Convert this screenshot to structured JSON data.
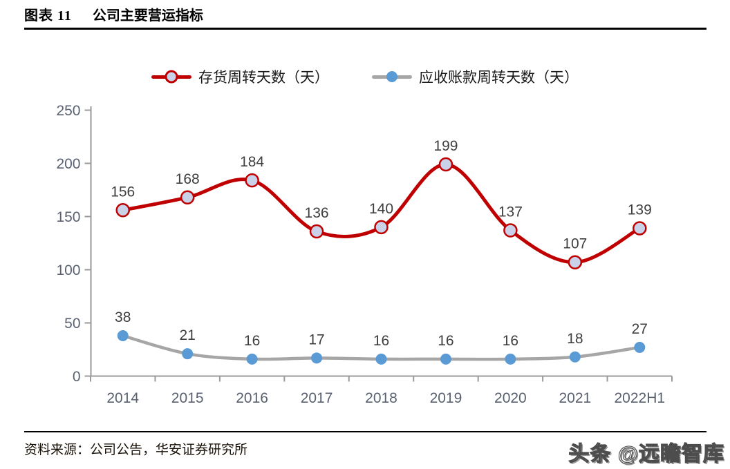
{
  "figure": {
    "label": "图表 11",
    "title": "公司主要营运指标"
  },
  "chart_data": {
    "type": "line",
    "categories": [
      "2014",
      "2015",
      "2016",
      "2017",
      "2018",
      "2019",
      "2020",
      "2021",
      "2022H1"
    ],
    "series": [
      {
        "name": "存货周转天数（天）",
        "values": [
          156,
          168,
          184,
          136,
          140,
          199,
          137,
          107,
          139
        ],
        "color": "#C00000",
        "marker_fill": "#C9D2E8",
        "marker_stroke": "#C00000",
        "smooth": true
      },
      {
        "name": "应收账款周转天数（天）",
        "values": [
          38,
          21,
          16,
          17,
          16,
          16,
          16,
          18,
          27
        ],
        "color": "#A6A6A6",
        "marker_fill": "#5B9BD5",
        "marker_stroke": "#5B9BD5",
        "smooth": true
      }
    ],
    "ylim": [
      0,
      250
    ],
    "yticks": [
      0,
      50,
      100,
      150,
      200,
      250
    ],
    "grid": false,
    "legend_position": "top",
    "data_labels": true
  },
  "colors": {
    "axis": "#9a9a9a",
    "tick_text": "#5a6170",
    "data_label": "#3f3f3f"
  },
  "footer": {
    "source": "资料来源：公司公告，华安证券研究所",
    "watermark": "头条 @远瞻智库"
  }
}
